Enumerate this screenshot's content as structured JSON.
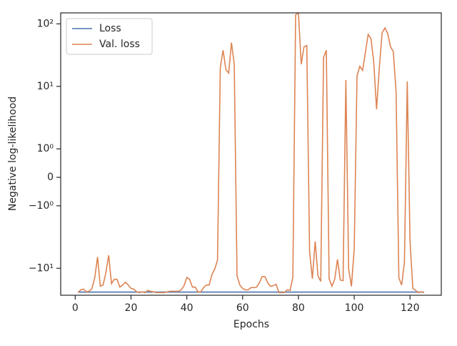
{
  "chart_data": {
    "type": "line",
    "xlabel": "Epochs",
    "ylabel": "Negative log-likelihood",
    "x": [
      1,
      2,
      3,
      4,
      5,
      6,
      7,
      8,
      9,
      10,
      11,
      12,
      13,
      14,
      15,
      16,
      17,
      18,
      19,
      20,
      21,
      22,
      23,
      24,
      25,
      26,
      27,
      28,
      29,
      30,
      31,
      32,
      33,
      34,
      35,
      36,
      37,
      38,
      39,
      40,
      41,
      42,
      43,
      44,
      45,
      46,
      47,
      48,
      49,
      50,
      51,
      52,
      53,
      54,
      55,
      56,
      57,
      58,
      59,
      60,
      61,
      62,
      63,
      64,
      65,
      66,
      67,
      68,
      69,
      70,
      71,
      72,
      73,
      74,
      75,
      76,
      77,
      78,
      79,
      80,
      81,
      82,
      83,
      84,
      85,
      86,
      87,
      88,
      89,
      90,
      91,
      92,
      93,
      94,
      95,
      96,
      97,
      98,
      99,
      100,
      101,
      102,
      103,
      104,
      105,
      106,
      107,
      108,
      109,
      110,
      111,
      112,
      113,
      114,
      115,
      116,
      117,
      118,
      119,
      120,
      121,
      122,
      123,
      124,
      125
    ],
    "series": [
      {
        "name": "Loss",
        "color": "#4c72b0",
        "values": [
          -24,
          -24,
          -24,
          -24,
          -24,
          -24,
          -24,
          -24,
          -24,
          -24,
          -24,
          -24,
          -24,
          -24,
          -24,
          -24,
          -24,
          -24,
          -24,
          -24,
          -24,
          -24,
          -24,
          -24,
          -24,
          -24,
          -24,
          -24,
          -24,
          -24,
          -24,
          -24,
          -24,
          -24,
          -24,
          -24,
          -24,
          -24,
          -24,
          -24,
          -24,
          -24,
          -24,
          -24,
          -24,
          -24,
          -24,
          -24,
          -24,
          -24,
          -24,
          -24,
          -24,
          -24,
          -24,
          -24,
          -24,
          -24,
          -24,
          -24,
          -24,
          -24,
          -24,
          -24,
          -24,
          -24,
          -24,
          -24,
          -24,
          -24,
          -24,
          -24,
          -24,
          -24,
          -24,
          -24,
          -24,
          -24,
          -24,
          -24,
          -24,
          -24,
          -24,
          -24,
          -24,
          -24,
          -24,
          -24,
          -24,
          -24,
          -24,
          -24,
          -24,
          -24,
          -24,
          -24,
          -24,
          -24,
          -24,
          -24,
          -24,
          -24,
          -24,
          -24,
          -24,
          -24,
          -24,
          -24,
          -24,
          -24,
          -24,
          -24,
          -24,
          -24,
          -24,
          -24,
          -24,
          -24,
          -24,
          -24,
          -24,
          -24,
          -24,
          -24,
          -24
        ]
      },
      {
        "name": "Val. loss",
        "color": "#dd8452",
        "values": [
          -24.5,
          -22.1,
          -21.5,
          -23.8,
          -23.3,
          -21,
          -14.3,
          -6.6,
          -19.4,
          -18.5,
          -11.7,
          -6.2,
          -17.6,
          -15,
          -15,
          -20,
          -18.5,
          -16.7,
          -18.5,
          -21,
          -21.5,
          -23.8,
          -24.5,
          -23.8,
          -24.5,
          -22.6,
          -23.3,
          -23.8,
          -24.5,
          -24.5,
          -24.5,
          -24.5,
          -23.8,
          -23.3,
          -23.3,
          -23.3,
          -23.3,
          -22.1,
          -19,
          -14,
          -15,
          -20,
          -20,
          -23.8,
          -23.8,
          -20.4,
          -18.5,
          -18.5,
          -12.6,
          -10.3,
          -7.4,
          20,
          37.9,
          18.5,
          16.3,
          50,
          22.7,
          -13.2,
          -18.5,
          -21,
          -22.1,
          -22.1,
          -20.4,
          -20.4,
          -20,
          -17.1,
          -13.6,
          -13.6,
          -17.1,
          -19.4,
          -19,
          -18,
          -24.5,
          -24.5,
          -24.5,
          -22.1,
          -22.6,
          -14,
          140,
          150,
          22.7,
          43,
          45,
          -5.4,
          -14.7,
          -3.7,
          -13.2,
          -16.2,
          29,
          37.9,
          -14.7,
          -19.4,
          -15,
          -7.2,
          -15.4,
          -15.8,
          12.6,
          -10.3,
          -19.4,
          -4.8,
          14.7,
          21,
          18,
          35,
          68,
          58,
          24.4,
          4.3,
          20,
          72,
          86,
          70,
          43,
          36,
          8.2,
          -14.3,
          -18.5,
          -7.9,
          12,
          -3.7,
          -21,
          -22.6,
          -24.5,
          -23.8,
          -24.5
        ]
      }
    ],
    "xlim": [
      -5.2,
      131.2
    ],
    "xticks": [
      0,
      20,
      40,
      60,
      80,
      100,
      120
    ],
    "ylim": [
      -27,
      150
    ],
    "yscale": "symlog",
    "linthresh": 1,
    "linscale": 0.41,
    "yticks": [
      {
        "value": 100,
        "label": "10²"
      },
      {
        "value": 10,
        "label": "10¹"
      },
      {
        "value": 1,
        "label": "10⁰"
      },
      0,
      {
        "value": -1,
        "label": "−10⁰"
      },
      {
        "value": -10,
        "label": "−10¹"
      }
    ],
    "legend": "upper left"
  }
}
